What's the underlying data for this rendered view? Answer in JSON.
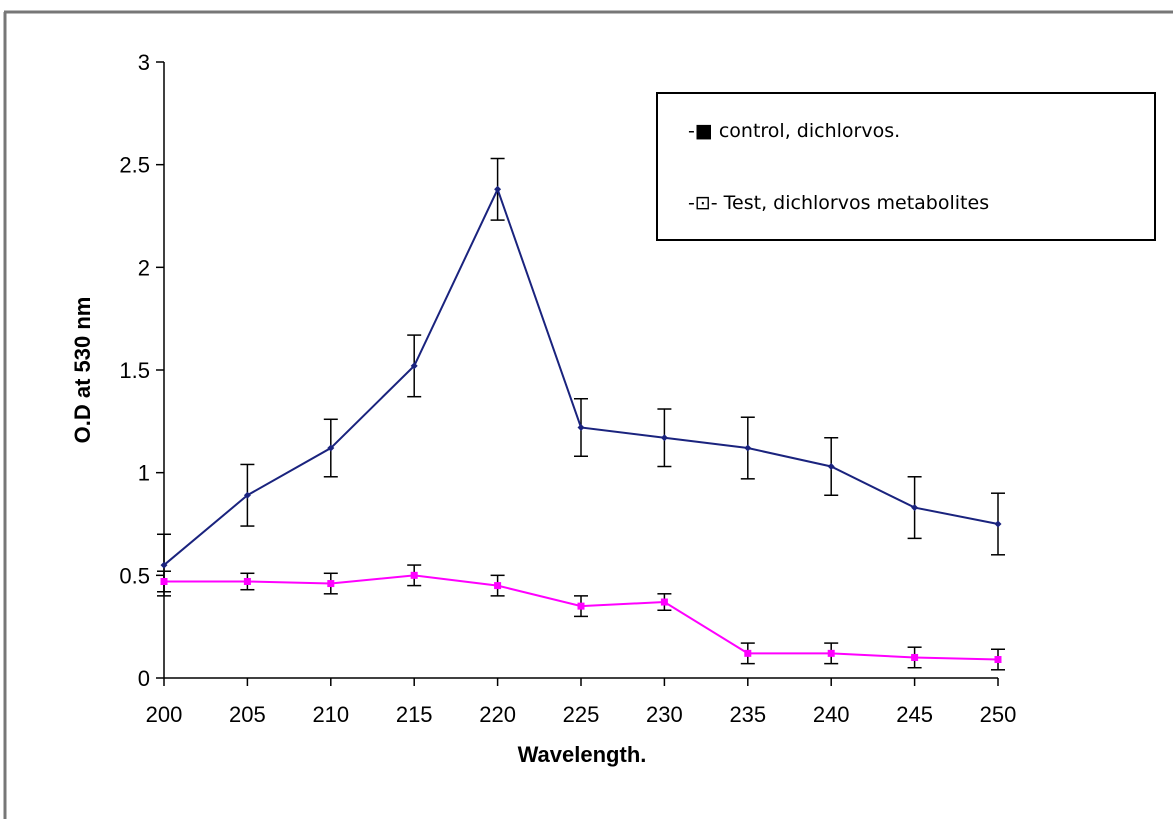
{
  "chart_data": {
    "type": "line",
    "title": "",
    "xlabel": "Wavelength.",
    "ylabel": "O.D at 530 nm",
    "x": [
      200,
      205,
      210,
      215,
      220,
      225,
      230,
      235,
      240,
      245,
      250
    ],
    "x_tick_labels": [
      "200",
      "205",
      "210",
      "215",
      "220",
      "225",
      "230",
      "235",
      "240",
      "245",
      "250"
    ],
    "y_tick_labels": [
      "0",
      "0.5",
      "1",
      "1.5",
      "2",
      "2.5",
      "3"
    ],
    "y_ticks": [
      0,
      0.5,
      1,
      1.5,
      2,
      2.5,
      3
    ],
    "xlim": [
      200,
      250
    ],
    "ylim": [
      0,
      3
    ],
    "grid": false,
    "legend_position": "top-right",
    "series": [
      {
        "name": "control, dichlorvos.",
        "legend_label": "-■ control, dichlorvos.",
        "color": "#1a237e",
        "marker": "diamond",
        "values": [
          0.55,
          0.89,
          1.12,
          1.52,
          2.38,
          1.22,
          1.17,
          1.12,
          1.03,
          0.83,
          0.75
        ],
        "errors": [
          0.15,
          0.15,
          0.14,
          0.15,
          0.15,
          0.14,
          0.14,
          0.15,
          0.14,
          0.15,
          0.15
        ]
      },
      {
        "name": "Test, dichlorvos metabolites",
        "legend_label": "-⊡- Test, dichlorvos metabolites",
        "color": "#ff00ff",
        "marker": "square",
        "values": [
          0.47,
          0.47,
          0.46,
          0.5,
          0.45,
          0.35,
          0.37,
          0.12,
          0.12,
          0.1,
          0.09
        ],
        "errors": [
          0.05,
          0.04,
          0.05,
          0.05,
          0.05,
          0.05,
          0.04,
          0.05,
          0.05,
          0.05,
          0.05
        ]
      }
    ]
  }
}
